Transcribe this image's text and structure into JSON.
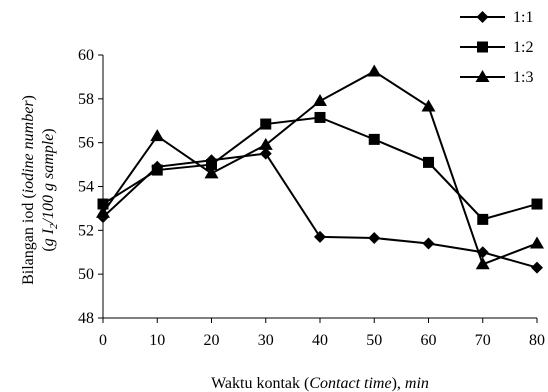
{
  "chart_data": {
    "type": "line",
    "x": [
      0,
      10,
      20,
      30,
      40,
      50,
      60,
      70,
      80
    ],
    "series": [
      {
        "name": "1:1",
        "marker": "diamond",
        "values": [
          52.6,
          54.9,
          55.2,
          55.5,
          51.7,
          51.65,
          51.4,
          51.0,
          50.3
        ]
      },
      {
        "name": "1:2",
        "marker": "square",
        "values": [
          53.2,
          54.75,
          55.0,
          56.85,
          57.15,
          56.15,
          55.1,
          52.5,
          53.2
        ]
      },
      {
        "name": "1:3",
        "marker": "triangle",
        "values": [
          52.8,
          56.3,
          54.6,
          55.9,
          57.9,
          59.25,
          57.65,
          50.45,
          51.4
        ]
      }
    ],
    "xlim": [
      0,
      80
    ],
    "ylim": [
      48,
      60
    ],
    "xticks": [
      "0",
      "10",
      "20",
      "30",
      "40",
      "50",
      "60",
      "70",
      "80"
    ],
    "yticks": [
      "48",
      "50",
      "52",
      "54",
      "56",
      "58",
      "60"
    ],
    "xlabel": {
      "plain": "Waktu kontak (",
      "italic": "Contact time",
      "plain2": "), ",
      "italic2": "min"
    },
    "ylabel": {
      "line1_plain": "Bilangan iod (",
      "line1_italic": "iodine number",
      "line1_close": ")",
      "line2_open": "(",
      "line2_italic_g": "g I",
      "line2_sub": "2",
      "line2_italic_rest": "/100 g sample",
      "line2_close": ")"
    },
    "legend_position": "top-right",
    "grid": false,
    "colors": {
      "line": "#000000",
      "marker": "#000000"
    }
  }
}
